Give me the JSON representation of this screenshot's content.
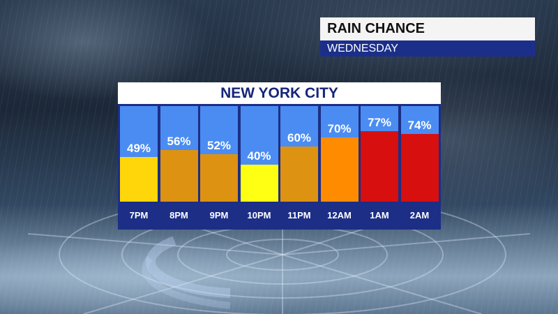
{
  "header": {
    "title": "RAIN CHANCE",
    "subtitle": "WEDNESDAY"
  },
  "chart_data": {
    "type": "bar",
    "title": "NEW YORK CITY",
    "categories": [
      "7PM",
      "8PM",
      "9PM",
      "10PM",
      "11PM",
      "12AM",
      "1AM",
      "2AM"
    ],
    "values": [
      49,
      56,
      52,
      40,
      60,
      70,
      77,
      74
    ],
    "value_labels": [
      "49%",
      "56%",
      "52%",
      "40%",
      "60%",
      "70%",
      "77%",
      "74%"
    ],
    "bar_colors": [
      "#ffd60a",
      "#de9212",
      "#de9212",
      "#ffff14",
      "#de9212",
      "#ff8c00",
      "#d80f0f",
      "#d80f0f"
    ],
    "ylim": [
      0,
      100
    ],
    "grid": false
  },
  "colors": {
    "panel": "#1c2e86",
    "column_background": "#4a8cf2",
    "header_band": "#1b2f8a"
  }
}
